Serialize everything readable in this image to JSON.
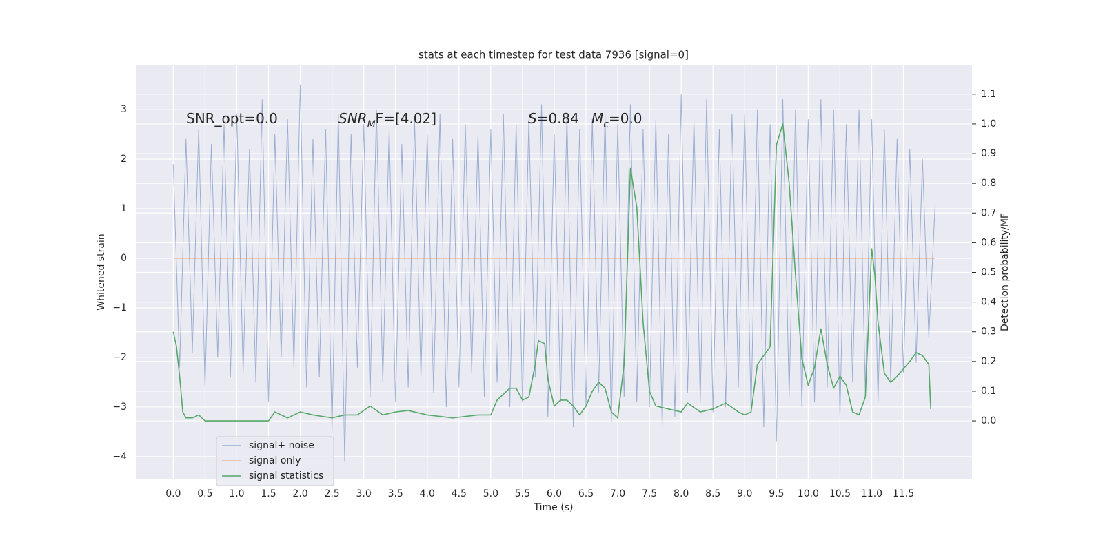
{
  "chart_data": {
    "type": "line",
    "title": "stats at each timestep for test data 7936 [signal=0]",
    "x_label": "Time (s)",
    "y_label": "Whitened strain",
    "y2_label": "Detection probability/MF",
    "annotations": [
      [
        "SNR_opt=0.0"
      ],
      [
        "SNR",
        "M",
        "F=[4.02]"
      ],
      [
        "S",
        "=0.84"
      ],
      [
        "M",
        "c",
        "=0.0"
      ]
    ],
    "xlim": [
      -0.59,
      12.58
    ],
    "ylim": [
      -4.46,
      3.89
    ],
    "y2lim": [
      -0.197,
      1.197
    ],
    "xticks": [
      {
        "value": 0,
        "label": "0.0"
      },
      0.5,
      {
        "value": 1,
        "label": "1.0"
      },
      1.5,
      {
        "value": 2,
        "label": "2.0"
      },
      2.5,
      {
        "value": 3,
        "label": "3.0"
      },
      3.5,
      {
        "value": 4,
        "label": "4.0"
      },
      4.5,
      {
        "value": 5,
        "label": "5.0"
      },
      5.5,
      {
        "value": 6,
        "label": "6.0"
      },
      6.5,
      {
        "value": 7,
        "label": "7.0"
      },
      7.5,
      {
        "value": 8,
        "label": "8.0"
      },
      8.5,
      {
        "value": 9,
        "label": "9.0"
      },
      9.5,
      {
        "value": 10,
        "label": "10.0"
      },
      10.5,
      {
        "value": 11,
        "label": "11.0"
      },
      11.5
    ],
    "yticks": [
      {
        "value": -4,
        "label": "−4"
      },
      {
        "value": -3,
        "label": "−3"
      },
      {
        "value": -2,
        "label": "−2"
      },
      {
        "value": -1,
        "label": "−1"
      },
      0,
      1,
      2,
      3
    ],
    "y2ticks": [
      {
        "value": 0,
        "label": "0.0"
      },
      0.1,
      0.2,
      0.3,
      0.4,
      0.5,
      0.6,
      0.7,
      0.8,
      0.9,
      {
        "value": 1,
        "label": "1.0"
      },
      1.1
    ],
    "grid": true,
    "legend": "lower left",
    "series": [
      {
        "name": "signal+ noise",
        "color": "#4c72b0",
        "x": [
          0,
          0.1,
          0.2,
          0.3,
          0.4,
          0.5,
          0.6,
          0.7,
          0.8,
          0.9,
          1,
          1.1,
          1.2,
          1.3,
          1.4,
          1.5,
          1.6,
          1.7,
          1.8,
          1.9,
          2,
          2.1,
          2.2,
          2.3,
          2.4,
          2.5,
          2.6,
          2.7,
          2.8,
          2.9,
          3,
          3.1,
          3.2,
          3.3,
          3.4,
          3.5,
          3.6,
          3.7,
          3.8,
          3.9,
          4,
          4.1,
          4.2,
          4.3,
          4.4,
          4.5,
          4.6,
          4.7,
          4.8,
          4.9,
          5,
          5.1,
          5.2,
          5.3,
          5.4,
          5.5,
          5.6,
          5.7,
          5.8,
          5.9,
          6,
          6.1,
          6.2,
          6.3,
          6.4,
          6.5,
          6.6,
          6.7,
          6.8,
          6.9,
          7,
          7.1,
          7.2,
          7.3,
          7.4,
          7.5,
          7.6,
          7.7,
          7.8,
          7.9,
          8,
          8.1,
          8.2,
          8.3,
          8.4,
          8.5,
          8.6,
          8.7,
          8.8,
          8.9,
          9,
          9.1,
          9.2,
          9.3,
          9.4,
          9.5,
          9.6,
          9.7,
          9.8,
          9.9,
          10,
          10.1,
          10.2,
          10.3,
          10.4,
          10.5,
          10.6,
          10.7,
          10.8,
          10.9,
          11,
          11.1,
          11.2,
          11.3,
          11.4,
          11.5,
          11.6,
          11.7,
          11.8,
          11.9,
          12
        ],
        "values": [
          1.9,
          -2.2,
          2.4,
          -1.9,
          2.6,
          -2.6,
          2.3,
          -2.0,
          2.7,
          -2.4,
          2.9,
          -2.3,
          2.2,
          -2.5,
          3.2,
          -2.9,
          2.5,
          -2.0,
          2.8,
          -2.2,
          3.5,
          -2.6,
          2.4,
          -2.4,
          2.6,
          -3.5,
          2.9,
          -4.1,
          2.5,
          -2.2,
          2.7,
          -2.8,
          3.0,
          -2.5,
          2.6,
          -2.9,
          2.3,
          -2.6,
          2.8,
          -2.4,
          2.5,
          -2.7,
          2.9,
          -3.0,
          2.4,
          -2.6,
          2.7,
          -2.3,
          2.5,
          -2.8,
          2.6,
          -2.5,
          2.9,
          -3.0,
          2.7,
          -2.9,
          2.8,
          -2.4,
          3.1,
          -3.2,
          2.5,
          -2.9,
          2.9,
          -3.4,
          2.6,
          -3.0,
          2.8,
          -2.7,
          2.9,
          -3.3,
          2.7,
          -2.8,
          3.1,
          -2.9,
          2.6,
          -3.0,
          2.8,
          -3.4,
          2.5,
          -3.2,
          3.3,
          -2.7,
          2.8,
          -2.9,
          3.2,
          -3.1,
          2.6,
          -3.0,
          2.9,
          -2.6,
          2.9,
          -3.1,
          3.0,
          -3.4,
          2.7,
          -3.7,
          3.2,
          -2.8,
          3.0,
          -3.0,
          2.8,
          -2.9,
          3.2,
          -2.6,
          3.0,
          -3.2,
          2.7,
          -2.5,
          3.0,
          -2.7,
          2.8,
          -2.9,
          2.6,
          -2.5,
          2.4,
          -2.3,
          2.2,
          -2.1,
          2.0,
          -1.6,
          1.1
        ]
      },
      {
        "name": "signal only",
        "color": "#dd8452",
        "x": [
          0,
          12
        ],
        "values": [
          0,
          0
        ]
      },
      {
        "name": "signal statistics",
        "color": "#55a868",
        "axis": "y2",
        "x": [
          0,
          0.05,
          0.1,
          0.15,
          0.2,
          0.3,
          0.4,
          0.5,
          0.7,
          0.9,
          1.1,
          1.3,
          1.5,
          1.6,
          1.8,
          2.0,
          2.2,
          2.5,
          2.7,
          2.9,
          3.1,
          3.3,
          3.5,
          3.7,
          4.0,
          4.4,
          4.8,
          5.0,
          5.1,
          5.3,
          5.4,
          5.5,
          5.6,
          5.7,
          5.75,
          5.85,
          5.9,
          6.0,
          6.1,
          6.2,
          6.3,
          6.4,
          6.5,
          6.6,
          6.7,
          6.8,
          6.9,
          7.0,
          7.1,
          7.2,
          7.3,
          7.4,
          7.5,
          7.6,
          7.8,
          8.0,
          8.1,
          8.3,
          8.5,
          8.7,
          8.9,
          9.0,
          9.1,
          9.2,
          9.3,
          9.4,
          9.5,
          9.6,
          9.7,
          9.8,
          9.9,
          10.0,
          10.1,
          10.2,
          10.3,
          10.4,
          10.5,
          10.6,
          10.7,
          10.8,
          10.9,
          11.0,
          11.05,
          11.1,
          11.2,
          11.3,
          11.4,
          11.6,
          11.7,
          11.8,
          11.9,
          11.93
        ],
        "values": [
          0.3,
          0.25,
          0.15,
          0.03,
          0.01,
          0.01,
          0.02,
          0.0,
          0.0,
          0.0,
          0.0,
          0.0,
          0.0,
          0.03,
          0.01,
          0.03,
          0.02,
          0.01,
          0.02,
          0.02,
          0.05,
          0.02,
          0.03,
          0.035,
          0.02,
          0.01,
          0.02,
          0.02,
          0.07,
          0.11,
          0.11,
          0.07,
          0.08,
          0.19,
          0.27,
          0.26,
          0.14,
          0.05,
          0.07,
          0.07,
          0.05,
          0.02,
          0.05,
          0.1,
          0.13,
          0.11,
          0.03,
          0.01,
          0.19,
          0.85,
          0.72,
          0.33,
          0.1,
          0.05,
          0.04,
          0.03,
          0.06,
          0.03,
          0.04,
          0.06,
          0.03,
          0.02,
          0.03,
          0.19,
          0.22,
          0.25,
          0.93,
          1.0,
          0.8,
          0.49,
          0.21,
          0.12,
          0.18,
          0.31,
          0.19,
          0.11,
          0.15,
          0.12,
          0.03,
          0.02,
          0.08,
          0.58,
          0.49,
          0.33,
          0.16,
          0.13,
          0.15,
          0.2,
          0.23,
          0.22,
          0.19,
          0.04
        ]
      }
    ]
  }
}
